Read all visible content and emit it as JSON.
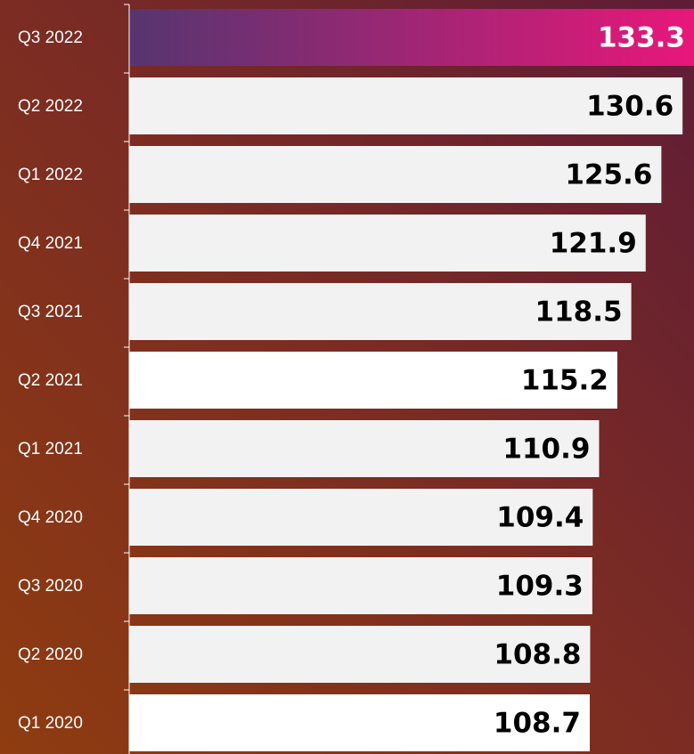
{
  "chart_data": {
    "type": "bar",
    "orientation": "horizontal",
    "categories": [
      "Q3 2022",
      "Q2 2022",
      "Q1 2022",
      "Q4 2021",
      "Q3 2021",
      "Q2 2021",
      "Q1 2021",
      "Q4 2020",
      "Q3 2020",
      "Q2 2020",
      "Q1 2020"
    ],
    "values": [
      133.3,
      130.6,
      125.6,
      121.9,
      118.5,
      115.2,
      110.9,
      109.4,
      109.3,
      108.8,
      108.7
    ],
    "colors": [
      "#e8177a",
      "#f2f2f2",
      "#f2f2f2",
      "#f2f2f2",
      "#f2f2f2",
      "#ffffff",
      "#f2f2f2",
      "#f2f2f2",
      "#f2f2f2",
      "#f2f2f2",
      "#ffffff"
    ],
    "xlim": [
      0,
      133.3
    ]
  }
}
